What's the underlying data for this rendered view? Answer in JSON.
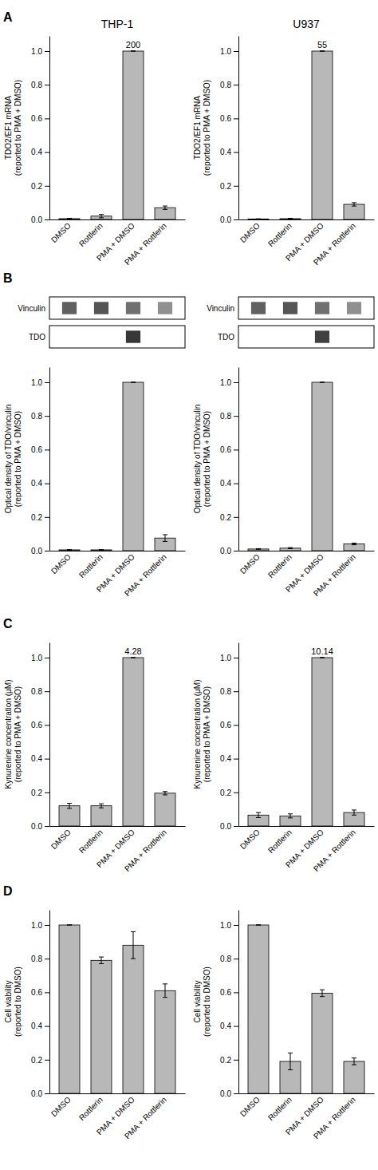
{
  "chart_data": [
    {
      "type": "bar",
      "title": "THP-1",
      "y_label": "TDO2/EF1 mRNA\n(reported to PMA + DMSO)",
      "categories": [
        "DMSO",
        "Rottlerin",
        "PMA + DMSO",
        "PMA + Rottlerin"
      ],
      "values": [
        0.005,
        0.02,
        1.0,
        0.07
      ],
      "errors": [
        0.002,
        0.01,
        0.0,
        0.01
      ],
      "color": "#b8b8b8",
      "ylim": [
        0.0,
        1.09
      ],
      "yticks": [
        {
          "value": 0,
          "label": "0.0"
        },
        0.2,
        0.4,
        0.6,
        0.8,
        {
          "value": 1,
          "label": "1.0"
        }
      ],
      "annotations": [
        {
          "text": "A"
        },
        {
          "text": "200",
          "category": "PMA + DMSO"
        }
      ]
    },
    {
      "type": "bar",
      "title": "U937",
      "y_label": "TDO2/EF1 mRNA\n(reported to PMA + DMSO)",
      "categories": [
        "DMSO",
        "Rottlerin",
        "PMA + DMSO",
        "PMA + Rottlerin"
      ],
      "values": [
        0.003,
        0.005,
        1.0,
        0.09
      ],
      "errors": [
        0.001,
        0.002,
        0.0,
        0.01
      ],
      "color": "#b8b8b8",
      "ylim": [
        0.0,
        1.09
      ],
      "yticks": [
        {
          "value": 0,
          "label": "0.0"
        },
        0.2,
        0.4,
        0.6,
        0.8,
        {
          "value": 1,
          "label": "1.0"
        }
      ],
      "annotations": [
        {
          "text": "55",
          "category": "PMA + DMSO"
        }
      ]
    },
    {
      "type": "blot",
      "series": [
        {
          "name": "Vinculin",
          "colors": [
            "#606060",
            "#555555",
            "#707070",
            "#909090"
          ]
        },
        {
          "name": "TDO",
          "colors": [
            null,
            null,
            "#383838",
            null
          ]
        }
      ],
      "annotations": [
        {
          "text": "B"
        }
      ]
    },
    {
      "type": "blot",
      "series": [
        {
          "name": "Vinculin",
          "colors": [
            "#606060",
            "#555555",
            "#707070",
            "#909090"
          ]
        },
        {
          "name": "TDO",
          "colors": [
            null,
            null,
            "#404040",
            null
          ]
        }
      ]
    },
    {
      "type": "bar",
      "y_label": "Optical density of TDO/vinculin\n(reported to PMA + DMSO)",
      "categories": [
        "DMSO",
        "Rottlerin",
        "PMA + DMSO",
        "PMA + Rottlerin"
      ],
      "values": [
        0.005,
        0.005,
        1.0,
        0.075
      ],
      "errors": [
        0.001,
        0.001,
        0.0,
        0.02
      ],
      "color": "#b8b8b8",
      "ylim": [
        0.0,
        1.09
      ],
      "yticks": [
        {
          "value": 0,
          "label": "0.0"
        },
        0.2,
        0.4,
        0.6,
        0.8,
        {
          "value": 1,
          "label": "1.0"
        }
      ]
    },
    {
      "type": "bar",
      "y_label": "Optical density of TDO/vinculin\n(reported to PMA + DMSO)",
      "categories": [
        "DMSO",
        "Rottlerin",
        "PMA + DMSO",
        "PMA + Rottlerin"
      ],
      "values": [
        0.01,
        0.015,
        1.0,
        0.04
      ],
      "errors": [
        0.002,
        0.003,
        0.0,
        0.005
      ],
      "color": "#b8b8b8",
      "ylim": [
        0.0,
        1.09
      ],
      "yticks": [
        {
          "value": 0,
          "label": "0.0"
        },
        0.2,
        0.4,
        0.6,
        0.8,
        {
          "value": 1,
          "label": "1.0"
        }
      ]
    },
    {
      "type": "bar",
      "y_label": "Kynurenine concentration (μM)\n(reported to PMA + DMSO)",
      "categories": [
        "DMSO",
        "Rottlerin",
        "PMA + DMSO",
        "PMA + Rottlerin"
      ],
      "values": [
        0.12,
        0.12,
        1.0,
        0.195
      ],
      "errors": [
        0.015,
        0.012,
        0.0,
        0.01
      ],
      "color": "#b8b8b8",
      "ylim": [
        0.0,
        1.09
      ],
      "yticks": [
        {
          "value": 0,
          "label": "0.0"
        },
        0.2,
        0.4,
        0.6,
        0.8,
        {
          "value": 1,
          "label": "1.0"
        }
      ],
      "annotations": [
        {
          "text": "C"
        },
        {
          "text": "4.28",
          "category": "PMA + DMSO"
        }
      ]
    },
    {
      "type": "bar",
      "y_label": "Kynurenine concentration (μM)\n(reported to PMA + DMSO)",
      "categories": [
        "DMSO",
        "Rottlerin",
        "PMA + DMSO",
        "PMA + Rottlerin"
      ],
      "values": [
        0.065,
        0.06,
        1.0,
        0.08
      ],
      "errors": [
        0.015,
        0.012,
        0.0,
        0.015
      ],
      "color": "#b8b8b8",
      "ylim": [
        0.0,
        1.09
      ],
      "yticks": [
        {
          "value": 0,
          "label": "0.0"
        },
        0.2,
        0.4,
        0.6,
        0.8,
        {
          "value": 1,
          "label": "1.0"
        }
      ],
      "annotations": [
        {
          "text": "10.14",
          "category": "PMA + DMSO"
        }
      ]
    },
    {
      "type": "bar",
      "y_label": "Cell viability\n(reported to DMSO)",
      "categories": [
        "DMSO",
        "Rottlerin",
        "PMA + DMSO",
        "PMA + Rottlerin"
      ],
      "values": [
        1.0,
        0.79,
        0.88,
        0.61
      ],
      "errors": [
        0.0,
        0.02,
        0.08,
        0.04
      ],
      "color": "#b8b8b8",
      "ylim": [
        0.0,
        1.09
      ],
      "yticks": [
        {
          "value": 0,
          "label": "0.0"
        },
        0.2,
        0.4,
        0.6,
        0.8,
        {
          "value": 1,
          "label": "1.0"
        }
      ],
      "annotations": [
        {
          "text": "D"
        }
      ]
    },
    {
      "type": "bar",
      "y_label": "Cell viability\n(reported to DMSO)",
      "categories": [
        "DMSO",
        "Rottlerin",
        "PMA + DMSO",
        "PMA + Rottlerin"
      ],
      "values": [
        1.0,
        0.19,
        0.595,
        0.19
      ],
      "errors": [
        0.0,
        0.05,
        0.02,
        0.02
      ],
      "color": "#b8b8b8",
      "ylim": [
        0.0,
        1.09
      ],
      "yticks": [
        {
          "value": 0,
          "label": "0.0"
        },
        0.2,
        0.4,
        0.6,
        0.8,
        {
          "value": 1,
          "label": "1.0"
        }
      ]
    }
  ]
}
